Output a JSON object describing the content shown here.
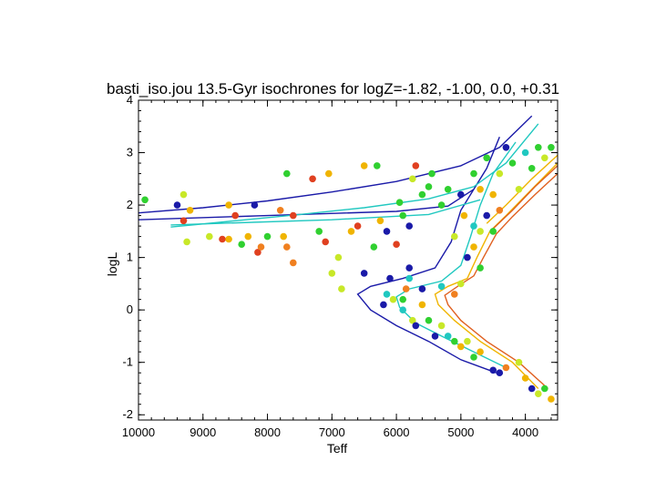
{
  "chart_data": {
    "type": "scatter",
    "title": "basti_iso.jou  13.5-Gyr isochrones for logZ=-1.82, -1.00, 0.0, +0.31",
    "xlabel": "Teff",
    "ylabel": "logL",
    "xlim": [
      10000,
      3500
    ],
    "ylim": [
      -2.1,
      4
    ],
    "xticks": [
      10000,
      9000,
      8000,
      7000,
      6000,
      5000,
      4000
    ],
    "yticks": [
      -2,
      -1,
      0,
      1,
      2,
      3,
      4
    ],
    "xtick_labels": [
      "10000",
      "9000",
      "8000",
      "7000",
      "6000",
      "5000",
      "4000"
    ],
    "ytick_labels": [
      "-2",
      "-1",
      "0",
      "1",
      "2",
      "3",
      "4"
    ],
    "isochrones": [
      {
        "name": "logZ=-1.82",
        "color": "#1a1aa8",
        "branches": [
          [
            [
              4450,
              -1.2
            ],
            [
              5000,
              -0.95
            ],
            [
              5500,
              -0.6
            ],
            [
              6000,
              -0.3
            ],
            [
              6400,
              0.0
            ],
            [
              6600,
              0.3
            ],
            [
              6400,
              0.45
            ],
            [
              5900,
              0.6
            ],
            [
              5400,
              0.8
            ],
            [
              5150,
              1.3
            ],
            [
              5000,
              1.9
            ],
            [
              4800,
              2.3
            ],
            [
              4600,
              2.7
            ],
            [
              4400,
              3.3
            ]
          ],
          [
            [
              10000,
              1.85
            ],
            [
              9000,
              1.95
            ],
            [
              8000,
              2.08
            ],
            [
              7000,
              2.25
            ],
            [
              6000,
              2.45
            ],
            [
              5000,
              2.75
            ],
            [
              4400,
              3.1
            ],
            [
              3900,
              3.7
            ]
          ],
          [
            [
              10000,
              1.72
            ],
            [
              8000,
              1.8
            ],
            [
              6000,
              1.88
            ],
            [
              5200,
              1.98
            ],
            [
              4800,
              2.3
            ]
          ]
        ]
      },
      {
        "name": "logZ=-1.00",
        "color": "#20c8c0",
        "branches": [
          [
            [
              4300,
              -1.1
            ],
            [
              4800,
              -0.8
            ],
            [
              5300,
              -0.5
            ],
            [
              5700,
              -0.25
            ],
            [
              5950,
              0.05
            ],
            [
              6000,
              0.25
            ],
            [
              5800,
              0.4
            ],
            [
              5300,
              0.55
            ],
            [
              5000,
              0.85
            ],
            [
              4850,
              1.4
            ],
            [
              4700,
              2.0
            ],
            [
              4500,
              2.6
            ],
            [
              4150,
              3.2
            ]
          ],
          [
            [
              9500,
              1.58
            ],
            [
              8500,
              1.7
            ],
            [
              7500,
              1.82
            ],
            [
              6500,
              1.95
            ],
            [
              5500,
              2.12
            ],
            [
              4800,
              2.35
            ],
            [
              4300,
              2.8
            ],
            [
              3800,
              3.55
            ]
          ],
          [
            [
              9500,
              1.62
            ],
            [
              7000,
              1.72
            ],
            [
              5500,
              1.82
            ],
            [
              4700,
              2.1
            ]
          ]
        ]
      },
      {
        "name": "logZ=0.0",
        "color": "#f0b400",
        "branches": [
          [
            [
              3800,
              -1.5
            ],
            [
              4200,
              -1.0
            ],
            [
              4700,
              -0.6
            ],
            [
              5100,
              -0.2
            ],
            [
              5350,
              0.1
            ],
            [
              5400,
              0.3
            ],
            [
              5200,
              0.45
            ],
            [
              4900,
              0.6
            ],
            [
              4750,
              1.0
            ],
            [
              4550,
              1.5
            ],
            [
              4300,
              1.8
            ],
            [
              3900,
              2.3
            ],
            [
              3500,
              2.8
            ]
          ],
          [
            [
              4600,
              1.65
            ],
            [
              4300,
              2.0
            ],
            [
              3900,
              2.5
            ],
            [
              3500,
              2.95
            ]
          ]
        ]
      },
      {
        "name": "logZ=+0.31",
        "color": "#e06020",
        "branches": [
          [
            [
              3650,
              -1.5
            ],
            [
              4100,
              -1.0
            ],
            [
              4600,
              -0.6
            ],
            [
              5000,
              -0.2
            ],
            [
              5200,
              0.1
            ],
            [
              5250,
              0.28
            ],
            [
              5050,
              0.45
            ],
            [
              4800,
              0.65
            ],
            [
              4650,
              1.0
            ],
            [
              4450,
              1.45
            ],
            [
              4200,
              1.78
            ],
            [
              3850,
              2.2
            ],
            [
              3500,
              2.6
            ]
          ],
          [
            [
              4500,
              1.55
            ],
            [
              4200,
              1.9
            ],
            [
              3850,
              2.35
            ],
            [
              3500,
              2.75
            ]
          ]
        ]
      }
    ],
    "points": [
      {
        "teff": 9900,
        "logl": 2.1,
        "c": "#30d030"
      },
      {
        "teff": 9400,
        "logl": 2.0,
        "c": "#1a1aa8"
      },
      {
        "teff": 9300,
        "logl": 2.2,
        "c": "#c8e828"
      },
      {
        "teff": 9300,
        "logl": 1.7,
        "c": "#e04020"
      },
      {
        "teff": 9250,
        "logl": 1.3,
        "c": "#c8e828"
      },
      {
        "teff": 9200,
        "logl": 1.9,
        "c": "#f0b400"
      },
      {
        "teff": 8900,
        "logl": 1.4,
        "c": "#c8e828"
      },
      {
        "teff": 8700,
        "logl": 1.35,
        "c": "#e04020"
      },
      {
        "teff": 8600,
        "logl": 1.35,
        "c": "#f0b400"
      },
      {
        "teff": 8600,
        "logl": 2.0,
        "c": "#f0b400"
      },
      {
        "teff": 8500,
        "logl": 1.8,
        "c": "#e04020"
      },
      {
        "teff": 8400,
        "logl": 1.25,
        "c": "#30d030"
      },
      {
        "teff": 8300,
        "logl": 1.4,
        "c": "#f0b400"
      },
      {
        "teff": 8200,
        "logl": 2.0,
        "c": "#1a1aa8"
      },
      {
        "teff": 8150,
        "logl": 1.1,
        "c": "#e04020"
      },
      {
        "teff": 8100,
        "logl": 1.2,
        "c": "#f08020"
      },
      {
        "teff": 8000,
        "logl": 1.4,
        "c": "#30d030"
      },
      {
        "teff": 7800,
        "logl": 1.9,
        "c": "#f08020"
      },
      {
        "teff": 7750,
        "logl": 1.4,
        "c": "#f0b400"
      },
      {
        "teff": 7700,
        "logl": 1.2,
        "c": "#f08020"
      },
      {
        "teff": 7600,
        "logl": 0.9,
        "c": "#f08020"
      },
      {
        "teff": 7700,
        "logl": 2.6,
        "c": "#30d030"
      },
      {
        "teff": 7600,
        "logl": 1.8,
        "c": "#e04020"
      },
      {
        "teff": 7300,
        "logl": 2.5,
        "c": "#e04020"
      },
      {
        "teff": 7200,
        "logl": 1.5,
        "c": "#30d030"
      },
      {
        "teff": 7100,
        "logl": 1.3,
        "c": "#e04020"
      },
      {
        "teff": 7050,
        "logl": 2.6,
        "c": "#f0b400"
      },
      {
        "teff": 7000,
        "logl": 0.7,
        "c": "#c8e828"
      },
      {
        "teff": 6900,
        "logl": 1.0,
        "c": "#c8e828"
      },
      {
        "teff": 6850,
        "logl": 0.4,
        "c": "#c8e828"
      },
      {
        "teff": 6700,
        "logl": 1.5,
        "c": "#f0b400"
      },
      {
        "teff": 6600,
        "logl": 1.6,
        "c": "#e04020"
      },
      {
        "teff": 6500,
        "logl": 0.7,
        "c": "#1a1aa8"
      },
      {
        "teff": 6500,
        "logl": 2.75,
        "c": "#f0b400"
      },
      {
        "teff": 6350,
        "logl": 1.2,
        "c": "#30d030"
      },
      {
        "teff": 6300,
        "logl": 2.75,
        "c": "#30d030"
      },
      {
        "teff": 6250,
        "logl": 1.7,
        "c": "#f0b400"
      },
      {
        "teff": 6150,
        "logl": 1.5,
        "c": "#1a1aa8"
      },
      {
        "teff": 6000,
        "logl": 1.25,
        "c": "#e04020"
      },
      {
        "teff": 5950,
        "logl": 2.05,
        "c": "#30d030"
      },
      {
        "teff": 5900,
        "logl": 1.8,
        "c": "#30d030"
      },
      {
        "teff": 5800,
        "logl": 1.6,
        "c": "#1a1aa8"
      },
      {
        "teff": 5750,
        "logl": 2.5,
        "c": "#c8e828"
      },
      {
        "teff": 5700,
        "logl": 2.75,
        "c": "#e04020"
      },
      {
        "teff": 5600,
        "logl": 2.2,
        "c": "#30d030"
      },
      {
        "teff": 5500,
        "logl": 2.35,
        "c": "#30d030"
      },
      {
        "teff": 5450,
        "logl": 2.6,
        "c": "#30d030"
      },
      {
        "teff": 5300,
        "logl": 2.0,
        "c": "#30d030"
      },
      {
        "teff": 5200,
        "logl": 2.3,
        "c": "#30d030"
      },
      {
        "teff": 5100,
        "logl": 1.4,
        "c": "#c8e828"
      },
      {
        "teff": 4950,
        "logl": 1.8,
        "c": "#f0b400"
      },
      {
        "teff": 4800,
        "logl": 2.6,
        "c": "#30d030"
      },
      {
        "teff": 4700,
        "logl": 1.5,
        "c": "#c8e828"
      },
      {
        "teff": 4600,
        "logl": 2.9,
        "c": "#30d030"
      },
      {
        "teff": 4500,
        "logl": 2.2,
        "c": "#f0b400"
      },
      {
        "teff": 4400,
        "logl": 2.6,
        "c": "#c8e828"
      },
      {
        "teff": 4300,
        "logl": 3.1,
        "c": "#1a1aa8"
      },
      {
        "teff": 4200,
        "logl": 2.8,
        "c": "#30d030"
      },
      {
        "teff": 4100,
        "logl": 2.3,
        "c": "#c8e828"
      },
      {
        "teff": 4000,
        "logl": 3.0,
        "c": "#20c8c0"
      },
      {
        "teff": 3900,
        "logl": 2.7,
        "c": "#30d030"
      },
      {
        "teff": 3800,
        "logl": 3.1,
        "c": "#30d030"
      },
      {
        "teff": 3700,
        "logl": 2.9,
        "c": "#c8e828"
      },
      {
        "teff": 3600,
        "logl": 3.1,
        "c": "#30d030"
      },
      {
        "teff": 5800,
        "logl": 0.8,
        "c": "#1a1aa8"
      },
      {
        "teff": 5800,
        "logl": 0.6,
        "c": "#20c8c0"
      },
      {
        "teff": 5850,
        "logl": 0.4,
        "c": "#f08020"
      },
      {
        "teff": 5900,
        "logl": 0.2,
        "c": "#30d030"
      },
      {
        "teff": 5900,
        "logl": 0.0,
        "c": "#20c8c0"
      },
      {
        "teff": 5750,
        "logl": -0.2,
        "c": "#c8e828"
      },
      {
        "teff": 5700,
        "logl": -0.3,
        "c": "#1a1aa8"
      },
      {
        "teff": 5600,
        "logl": 0.1,
        "c": "#f0b400"
      },
      {
        "teff": 5500,
        "logl": -0.2,
        "c": "#30d030"
      },
      {
        "teff": 5400,
        "logl": -0.5,
        "c": "#1a1aa8"
      },
      {
        "teff": 5300,
        "logl": -0.3,
        "c": "#c8e828"
      },
      {
        "teff": 5200,
        "logl": -0.5,
        "c": "#20c8c0"
      },
      {
        "teff": 5100,
        "logl": -0.6,
        "c": "#30d030"
      },
      {
        "teff": 5000,
        "logl": -0.7,
        "c": "#f0b400"
      },
      {
        "teff": 4900,
        "logl": -0.6,
        "c": "#c8e828"
      },
      {
        "teff": 4800,
        "logl": -0.9,
        "c": "#30d030"
      },
      {
        "teff": 4700,
        "logl": -0.8,
        "c": "#f0b400"
      },
      {
        "teff": 4500,
        "logl": -1.15,
        "c": "#1a1aa8"
      },
      {
        "teff": 4400,
        "logl": -1.2,
        "c": "#1a1aa8"
      },
      {
        "teff": 4300,
        "logl": -1.1,
        "c": "#f08020"
      },
      {
        "teff": 4100,
        "logl": -1.0,
        "c": "#c8e828"
      },
      {
        "teff": 4000,
        "logl": -1.3,
        "c": "#f0b400"
      },
      {
        "teff": 3900,
        "logl": -1.5,
        "c": "#1a1aa8"
      },
      {
        "teff": 3800,
        "logl": -1.6,
        "c": "#c8e828"
      },
      {
        "teff": 3700,
        "logl": -1.5,
        "c": "#30d030"
      },
      {
        "teff": 3600,
        "logl": -1.7,
        "c": "#f0b400"
      },
      {
        "teff": 6100,
        "logl": 0.6,
        "c": "#1a1aa8"
      },
      {
        "teff": 6150,
        "logl": 0.3,
        "c": "#20c8c0"
      },
      {
        "teff": 6050,
        "logl": 0.2,
        "c": "#c8e828"
      },
      {
        "teff": 6200,
        "logl": 0.1,
        "c": "#1a1aa8"
      },
      {
        "teff": 5600,
        "logl": 0.4,
        "c": "#1a1aa8"
      },
      {
        "teff": 5300,
        "logl": 0.45,
        "c": "#20c8c0"
      },
      {
        "teff": 5100,
        "logl": 0.3,
        "c": "#f08020"
      },
      {
        "teff": 5000,
        "logl": 0.5,
        "c": "#c8e828"
      },
      {
        "teff": 4900,
        "logl": 1.0,
        "c": "#1a1aa8"
      },
      {
        "teff": 4800,
        "logl": 1.2,
        "c": "#f0b400"
      },
      {
        "teff": 4700,
        "logl": 0.8,
        "c": "#30d030"
      },
      {
        "teff": 4600,
        "logl": 1.8,
        "c": "#1a1aa8"
      },
      {
        "teff": 4500,
        "logl": 1.5,
        "c": "#30d030"
      },
      {
        "teff": 4400,
        "logl": 1.9,
        "c": "#f08020"
      },
      {
        "teff": 4700,
        "logl": 2.3,
        "c": "#f0b400"
      },
      {
        "teff": 5000,
        "logl": 2.2,
        "c": "#1a1aa8"
      },
      {
        "teff": 4800,
        "logl": 1.6,
        "c": "#20c8c0"
      }
    ]
  }
}
